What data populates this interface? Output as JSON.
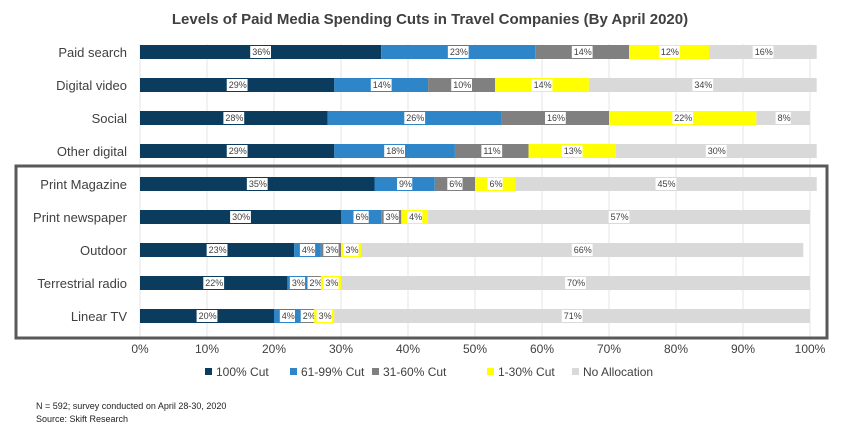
{
  "chart_data": {
    "type": "bar",
    "orientation": "horizontal",
    "stacked": true,
    "title": "Levels of Paid Media Spending Cuts in Travel Companies (By April 2020)",
    "categories": [
      "Paid search",
      "Digital video",
      "Social",
      "Other digital",
      "Print Magazine",
      "Print newspaper",
      "Outdoor",
      "Terrestrial radio",
      "Linear TV"
    ],
    "series": [
      {
        "name": "100% Cut",
        "color": "#0b3c5d",
        "values": [
          36,
          29,
          28,
          29,
          35,
          30,
          23,
          22,
          20
        ]
      },
      {
        "name": "61-99% Cut",
        "color": "#2e86c8",
        "values": [
          23,
          14,
          26,
          18,
          9,
          6,
          4,
          3,
          4
        ]
      },
      {
        "name": "31-60% Cut",
        "color": "#808080",
        "values": [
          14,
          10,
          16,
          11,
          6,
          3,
          3,
          2,
          2
        ]
      },
      {
        "name": "1-30% Cut",
        "color": "#ffff00",
        "values": [
          12,
          14,
          22,
          13,
          6,
          4,
          3,
          3,
          3
        ]
      },
      {
        "name": "No Allocation",
        "color": "#d9d9d9",
        "values": [
          16,
          34,
          8,
          30,
          45,
          57,
          66,
          70,
          71
        ]
      }
    ],
    "xlim": [
      0,
      100
    ],
    "xticks": [
      "0%",
      "10%",
      "20%",
      "30%",
      "40%",
      "50%",
      "60%",
      "70%",
      "80%",
      "90%",
      "100%"
    ],
    "legend_position": "bottom",
    "highlight_box": "Print Magazine to Linear TV"
  },
  "footnotes": {
    "line1": "N = 592; survey conducted on April 28-30, 2020",
    "line2": "Source: Skift Research"
  }
}
